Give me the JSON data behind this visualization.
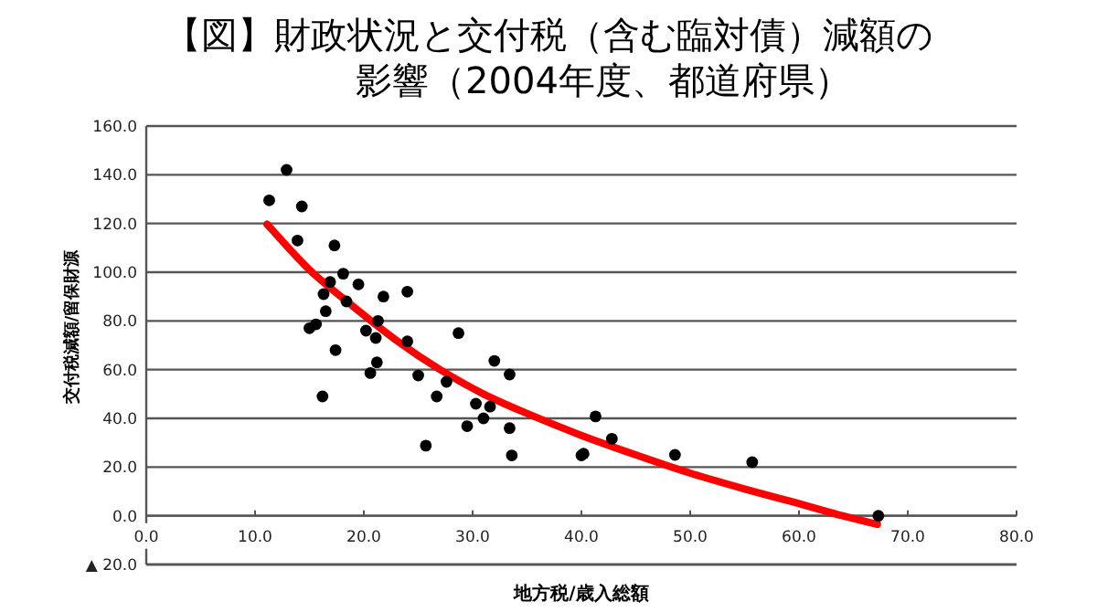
{
  "chart_data": {
    "type": "scatter",
    "title": "【図】財政状況と交付税（含む臨対債）減額の",
    "subtitle": "影響（2004年度、都道府県）",
    "xlabel": "地方税/歳入総額",
    "ylabel": "交付税減額/留保財源",
    "xlim": [
      0,
      80
    ],
    "xticks": [
      {
        "value": 0,
        "label": "0.0"
      },
      {
        "value": 10,
        "label": "10.0"
      },
      {
        "value": 20,
        "label": "20.0"
      },
      {
        "value": 30,
        "label": "30.0"
      },
      {
        "value": 40,
        "label": "40.0"
      },
      {
        "value": 50,
        "label": "50.0"
      },
      {
        "value": 60,
        "label": "60.0"
      },
      {
        "value": 70,
        "label": "70.0"
      },
      {
        "value": 80,
        "label": "80.0"
      }
    ],
    "ylim": [
      -20,
      160
    ],
    "yticks": [
      {
        "value": -20,
        "label": "▲ 20.0"
      },
      {
        "value": 0,
        "label": "0.0"
      },
      {
        "value": 20,
        "label": "20.0"
      },
      {
        "value": 40,
        "label": "40.0"
      },
      {
        "value": 60,
        "label": "60.0"
      },
      {
        "value": 80,
        "label": "80.0"
      },
      {
        "value": 100,
        "label": "100.0"
      },
      {
        "value": 120,
        "label": "120.0"
      },
      {
        "value": 140,
        "label": "140.0"
      },
      {
        "value": 160,
        "label": "160.0"
      }
    ],
    "grid": "y",
    "series": [
      {
        "marker": "circle",
        "color": "#000000",
        "x": [
          11.3,
          12.9,
          14.3,
          13.9,
          17.3,
          18.1,
          16.9,
          19.5,
          16.3,
          18.4,
          21.8,
          24.0,
          16.5,
          15.6,
          15.0,
          21.3,
          20.2,
          21.1,
          17.4,
          24.0,
          28.7,
          32.0,
          21.2,
          16.2,
          20.6,
          25.0,
          26.7,
          25.7,
          27.6,
          29.5,
          30.3,
          31.0,
          31.6,
          33.4,
          33.4,
          33.6,
          41.3,
          42.8,
          40.0,
          40.2,
          48.6,
          55.7,
          67.3
        ],
        "values": [
          129.5,
          142,
          127,
          113,
          111,
          99.4,
          96,
          95,
          91,
          88,
          90,
          92,
          84,
          78.6,
          77,
          80,
          76,
          73,
          68,
          71.6,
          75,
          63.6,
          63,
          49,
          58.6,
          57.6,
          49,
          28.8,
          55,
          36.8,
          46,
          40,
          44.8,
          58,
          36,
          24.8,
          40.8,
          31.6,
          24.8,
          25.5,
          25,
          22,
          0
        ]
      },
      {
        "type": "line",
        "color": "#ff0000",
        "x": [
          11.1,
          15,
          19,
          23,
          27,
          31,
          35,
          40,
          45,
          50,
          55,
          60,
          64,
          67.2
        ],
        "values": [
          119.7,
          101,
          86,
          72,
          60,
          50,
          42,
          33,
          25,
          17.5,
          11,
          5,
          0,
          -3.5
        ]
      }
    ]
  }
}
